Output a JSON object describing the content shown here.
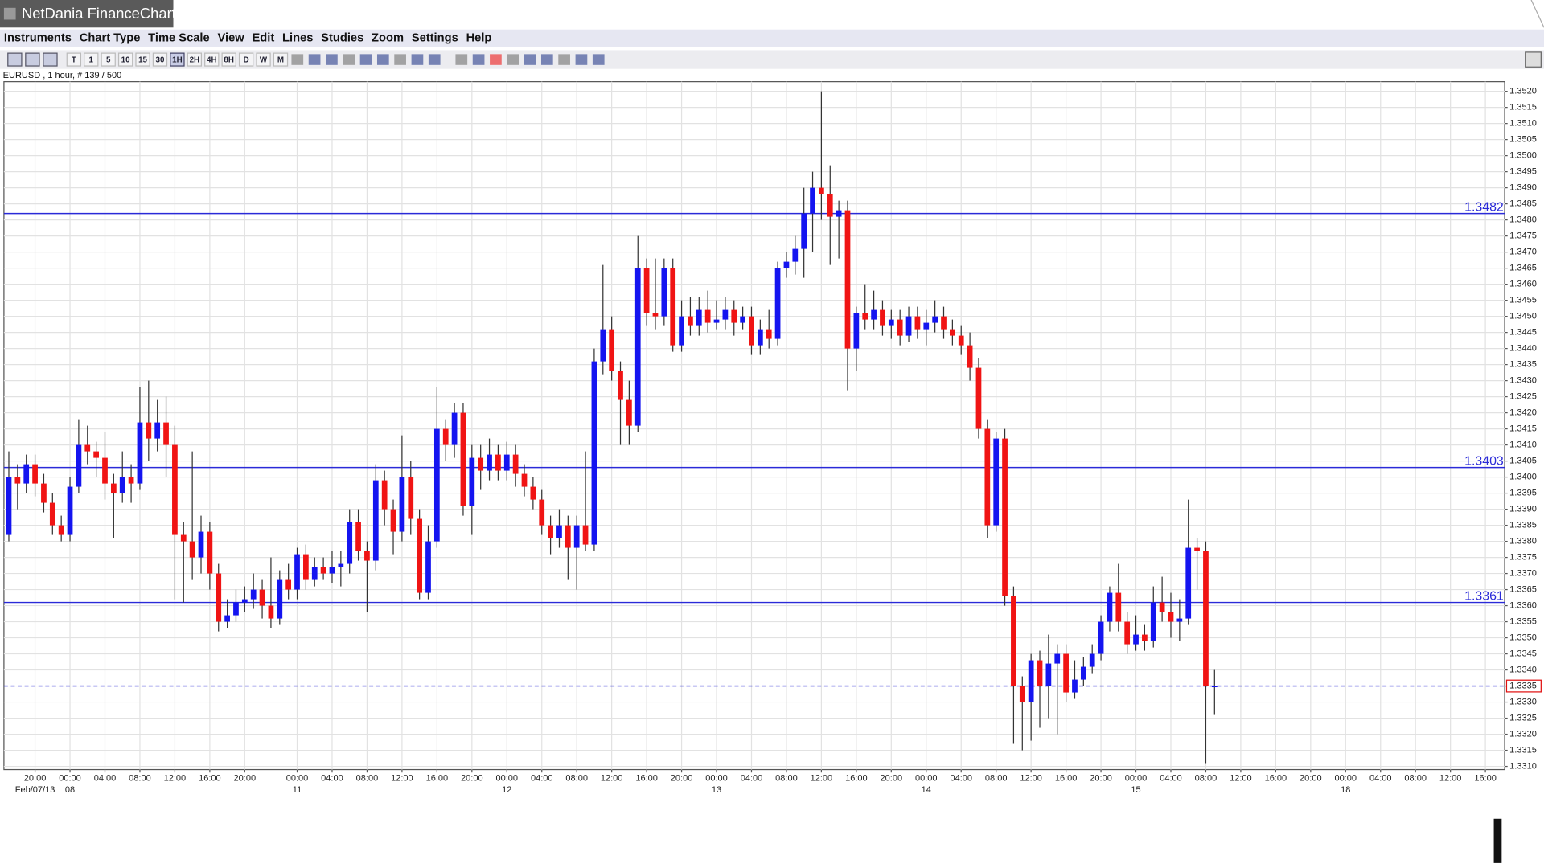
{
  "window": {
    "title": "NetDania FinanceChart"
  },
  "menu": [
    "Instruments",
    "Chart Type",
    "Time Scale",
    "View",
    "Edit",
    "Lines",
    "Studies",
    "Zoom",
    "Settings",
    "Help"
  ],
  "toolbar": {
    "timeframes": [
      "T",
      "1",
      "5",
      "10",
      "15",
      "30",
      "1H",
      "2H",
      "4H",
      "8H",
      "D",
      "W",
      "M"
    ]
  },
  "chart_data": {
    "type": "candlestick",
    "instrument_label": "EURUSD , 1 hour, # 139 / 500",
    "up_color": "#1414f0",
    "down_color": "#f01414",
    "line_color": "#2a2ad8",
    "last_color": "#e01010",
    "grid": true,
    "xlim": [
      -0.56,
      171.2
    ],
    "ylim": [
      1.3309,
      1.3523
    ],
    "yticks": [
      {
        "value": 1.331,
        "label": "1.3310"
      },
      1.3315,
      {
        "value": 1.332,
        "label": "1.3320"
      },
      1.3325,
      {
        "value": 1.333,
        "label": "1.3330"
      },
      1.3335,
      {
        "value": 1.334,
        "label": "1.3340"
      },
      1.3345,
      {
        "value": 1.335,
        "label": "1.3350"
      },
      1.3355,
      {
        "value": 1.336,
        "label": "1.3360"
      },
      1.3365,
      {
        "value": 1.337,
        "label": "1.3370"
      },
      1.3375,
      {
        "value": 1.338,
        "label": "1.3380"
      },
      1.3385,
      {
        "value": 1.339,
        "label": "1.3390"
      },
      1.3395,
      {
        "value": 1.34,
        "label": "1.3400"
      },
      1.3405,
      {
        "value": 1.341,
        "label": "1.3410"
      },
      1.3415,
      {
        "value": 1.342,
        "label": "1.3420"
      },
      1.3425,
      {
        "value": 1.343,
        "label": "1.3430"
      },
      1.3435,
      {
        "value": 1.344,
        "label": "1.3440"
      },
      1.3445,
      {
        "value": 1.345,
        "label": "1.3450"
      },
      1.3455,
      {
        "value": 1.346,
        "label": "1.3460"
      },
      1.3465,
      {
        "value": 1.347,
        "label": "1.3470"
      },
      1.3475,
      {
        "value": 1.348,
        "label": "1.3480"
      },
      1.3485,
      {
        "value": 1.349,
        "label": "1.3490"
      },
      1.3495,
      {
        "value": 1.35,
        "label": "1.3500"
      },
      1.3505,
      {
        "value": 1.351,
        "label": "1.3510"
      },
      1.3515,
      {
        "value": 1.352,
        "label": "1.3520"
      }
    ],
    "xticks": [
      {
        "value": 3,
        "label": "20:00"
      },
      {
        "value": 7,
        "label": "00:00"
      },
      {
        "value": 11,
        "label": "04:00"
      },
      {
        "value": 15,
        "label": "08:00"
      },
      {
        "value": 19,
        "label": "12:00"
      },
      {
        "value": 23,
        "label": "16:00"
      },
      {
        "value": 27,
        "label": "20:00"
      },
      {
        "value": 33,
        "label": "00:00"
      },
      {
        "value": 37,
        "label": "04:00"
      },
      {
        "value": 41,
        "label": "08:00"
      },
      {
        "value": 45,
        "label": "12:00"
      },
      {
        "value": 49,
        "label": "16:00"
      },
      {
        "value": 53,
        "label": "20:00"
      },
      {
        "value": 57,
        "label": "00:00"
      },
      {
        "value": 61,
        "label": "04:00"
      },
      {
        "value": 65,
        "label": "08:00"
      },
      {
        "value": 69,
        "label": "12:00"
      },
      {
        "value": 73,
        "label": "16:00"
      },
      {
        "value": 77,
        "label": "20:00"
      },
      {
        "value": 81,
        "label": "00:00"
      },
      {
        "value": 85,
        "label": "04:00"
      },
      {
        "value": 89,
        "label": "08:00"
      },
      {
        "value": 93,
        "label": "12:00"
      },
      {
        "value": 97,
        "label": "16:00"
      },
      {
        "value": 101,
        "label": "20:00"
      },
      {
        "value": 105,
        "label": "00:00"
      },
      {
        "value": 109,
        "label": "04:00"
      },
      {
        "value": 113,
        "label": "08:00"
      },
      {
        "value": 117,
        "label": "12:00"
      },
      {
        "value": 121,
        "label": "16:00"
      },
      {
        "value": 125,
        "label": "20:00"
      },
      {
        "value": 129,
        "label": "00:00"
      },
      {
        "value": 133,
        "label": "04:00"
      },
      {
        "value": 137,
        "label": "08:00"
      },
      {
        "value": 141,
        "label": "12:00"
      },
      {
        "value": 145,
        "label": "16:00"
      },
      {
        "value": 149,
        "label": "20:00"
      },
      {
        "value": 153,
        "label": "00:00"
      },
      {
        "value": 157,
        "label": "04:00"
      },
      {
        "value": 161,
        "label": "08:00"
      },
      {
        "value": 165,
        "label": "12:00"
      },
      {
        "value": 169,
        "label": "16:00"
      }
    ],
    "date_ticks": [
      {
        "value": 3,
        "label": "Feb/07/13"
      },
      {
        "value": 7,
        "label": "08"
      },
      {
        "value": 33,
        "label": "11"
      },
      {
        "value": 57,
        "label": "12"
      },
      {
        "value": 81,
        "label": "13"
      },
      {
        "value": 105,
        "label": "14"
      },
      {
        "value": 129,
        "label": "15"
      },
      {
        "value": 153,
        "label": "18"
      }
    ],
    "hlines": [
      1.3482,
      1.3403,
      1.3361
    ],
    "last_price": 1.3335,
    "candles": [
      [
        1.3382,
        1.3408,
        1.338,
        1.34
      ],
      [
        1.34,
        1.3404,
        1.339,
        1.3398
      ],
      [
        1.3398,
        1.3407,
        1.3395,
        1.3404
      ],
      [
        1.3404,
        1.3407,
        1.3394,
        1.3398
      ],
      [
        1.3398,
        1.3401,
        1.3389,
        1.3392
      ],
      [
        1.3392,
        1.3395,
        1.3382,
        1.3385
      ],
      [
        1.3385,
        1.3388,
        1.338,
        1.3382
      ],
      [
        1.3382,
        1.34,
        1.338,
        1.3397
      ],
      [
        1.3397,
        1.3418,
        1.3395,
        1.341
      ],
      [
        1.341,
        1.3416,
        1.3404,
        1.3408
      ],
      [
        1.3408,
        1.3411,
        1.34,
        1.3406
      ],
      [
        1.3406,
        1.3414,
        1.3393,
        1.3398
      ],
      [
        1.3398,
        1.3401,
        1.3381,
        1.3395
      ],
      [
        1.3395,
        1.3408,
        1.3392,
        1.34
      ],
      [
        1.34,
        1.3404,
        1.3392,
        1.3398
      ],
      [
        1.3398,
        1.3428,
        1.3396,
        1.3417
      ],
      [
        1.3417,
        1.343,
        1.3405,
        1.3412
      ],
      [
        1.3412,
        1.3424,
        1.3408,
        1.3417
      ],
      [
        1.3417,
        1.3425,
        1.34,
        1.341
      ],
      [
        1.341,
        1.3416,
        1.3362,
        1.3382
      ],
      [
        1.3382,
        1.3386,
        1.3361,
        1.338
      ],
      [
        1.338,
        1.3408,
        1.3368,
        1.3375
      ],
      [
        1.3375,
        1.3388,
        1.337,
        1.3383
      ],
      [
        1.3383,
        1.3386,
        1.3365,
        1.337
      ],
      [
        1.337,
        1.3373,
        1.3352,
        1.3355
      ],
      [
        1.3355,
        1.3362,
        1.3353,
        1.3357
      ],
      [
        1.3357,
        1.3365,
        1.3355,
        1.3361
      ],
      [
        1.3361,
        1.3366,
        1.3358,
        1.3362
      ],
      [
        1.3362,
        1.337,
        1.3359,
        1.3365
      ],
      [
        1.3365,
        1.3368,
        1.3356,
        1.336
      ],
      [
        1.336,
        1.3375,
        1.3353,
        1.3356
      ],
      [
        1.3356,
        1.3371,
        1.3354,
        1.3368
      ],
      [
        1.3368,
        1.3373,
        1.3362,
        1.3365
      ],
      [
        1.3365,
        1.3378,
        1.3362,
        1.3376
      ],
      [
        1.3376,
        1.3379,
        1.3365,
        1.3368
      ],
      [
        1.3368,
        1.3375,
        1.3366,
        1.3372
      ],
      [
        1.3372,
        1.3375,
        1.3368,
        1.337
      ],
      [
        1.337,
        1.3377,
        1.3367,
        1.3372
      ],
      [
        1.3372,
        1.3377,
        1.3366,
        1.3373
      ],
      [
        1.3373,
        1.339,
        1.337,
        1.3386
      ],
      [
        1.3386,
        1.339,
        1.3374,
        1.3377
      ],
      [
        1.3377,
        1.338,
        1.3358,
        1.3374
      ],
      [
        1.3374,
        1.3404,
        1.3371,
        1.3399
      ],
      [
        1.3399,
        1.3402,
        1.3385,
        1.339
      ],
      [
        1.339,
        1.3393,
        1.3376,
        1.3383
      ],
      [
        1.3383,
        1.3413,
        1.338,
        1.34
      ],
      [
        1.34,
        1.3405,
        1.3382,
        1.3387
      ],
      [
        1.3387,
        1.339,
        1.3362,
        1.3364
      ],
      [
        1.3364,
        1.3385,
        1.3362,
        1.338
      ],
      [
        1.338,
        1.3428,
        1.3378,
        1.3415
      ],
      [
        1.3415,
        1.3418,
        1.3405,
        1.341
      ],
      [
        1.341,
        1.3423,
        1.3406,
        1.342
      ],
      [
        1.342,
        1.3423,
        1.3388,
        1.3391
      ],
      [
        1.3391,
        1.341,
        1.3382,
        1.3406
      ],
      [
        1.3406,
        1.341,
        1.3396,
        1.3402
      ],
      [
        1.3402,
        1.3412,
        1.3399,
        1.3407
      ],
      [
        1.3407,
        1.341,
        1.3399,
        1.3402
      ],
      [
        1.3402,
        1.3411,
        1.3399,
        1.3407
      ],
      [
        1.3407,
        1.341,
        1.3397,
        1.3401
      ],
      [
        1.3401,
        1.3404,
        1.3394,
        1.3397
      ],
      [
        1.3397,
        1.34,
        1.339,
        1.3393
      ],
      [
        1.3393,
        1.3396,
        1.3382,
        1.3385
      ],
      [
        1.3385,
        1.3388,
        1.3376,
        1.3381
      ],
      [
        1.3381,
        1.339,
        1.3378,
        1.3385
      ],
      [
        1.3385,
        1.3388,
        1.3368,
        1.3378
      ],
      [
        1.3378,
        1.3388,
        1.3365,
        1.3385
      ],
      [
        1.3385,
        1.3408,
        1.3377,
        1.3379
      ],
      [
        1.3379,
        1.344,
        1.3377,
        1.3436
      ],
      [
        1.3436,
        1.3466,
        1.3432,
        1.3446
      ],
      [
        1.3446,
        1.345,
        1.343,
        1.3433
      ],
      [
        1.3433,
        1.3436,
        1.341,
        1.3424
      ],
      [
        1.3424,
        1.343,
        1.341,
        1.3416
      ],
      [
        1.3416,
        1.3475,
        1.3414,
        1.3465
      ],
      [
        1.3465,
        1.3468,
        1.3447,
        1.3451
      ],
      [
        1.3451,
        1.3468,
        1.3446,
        1.345
      ],
      [
        1.345,
        1.3468,
        1.3447,
        1.3465
      ],
      [
        1.3465,
        1.3468,
        1.3439,
        1.3441
      ],
      [
        1.3441,
        1.3455,
        1.3439,
        1.345
      ],
      [
        1.345,
        1.3456,
        1.3444,
        1.3447
      ],
      [
        1.3447,
        1.3456,
        1.3444,
        1.3452
      ],
      [
        1.3452,
        1.3458,
        1.3445,
        1.3448
      ],
      [
        1.3448,
        1.3455,
        1.3446,
        1.3449
      ],
      [
        1.3449,
        1.3456,
        1.3446,
        1.3452
      ],
      [
        1.3452,
        1.3455,
        1.3444,
        1.3448
      ],
      [
        1.3448,
        1.3453,
        1.3446,
        1.345
      ],
      [
        1.345,
        1.3453,
        1.3438,
        1.3441
      ],
      [
        1.3441,
        1.3449,
        1.3438,
        1.3446
      ],
      [
        1.3446,
        1.3452,
        1.344,
        1.3443
      ],
      [
        1.3443,
        1.3467,
        1.3441,
        1.3465
      ],
      [
        1.3465,
        1.347,
        1.3462,
        1.3467
      ],
      [
        1.3467,
        1.3475,
        1.3463,
        1.3471
      ],
      [
        1.3471,
        1.349,
        1.3462,
        1.3482
      ],
      [
        1.3482,
        1.3495,
        1.347,
        1.349
      ],
      [
        1.349,
        1.352,
        1.348,
        1.3488
      ],
      [
        1.3488,
        1.3497,
        1.3466,
        1.3481
      ],
      [
        1.3481,
        1.3486,
        1.3468,
        1.3483
      ],
      [
        1.3483,
        1.3486,
        1.3427,
        1.344
      ],
      [
        1.344,
        1.3453,
        1.3433,
        1.3451
      ],
      [
        1.3451,
        1.346,
        1.3446,
        1.3449
      ],
      [
        1.3449,
        1.3458,
        1.3446,
        1.3452
      ],
      [
        1.3452,
        1.3455,
        1.3444,
        1.3447
      ],
      [
        1.3447,
        1.3452,
        1.3443,
        1.3449
      ],
      [
        1.3449,
        1.3452,
        1.3441,
        1.3444
      ],
      [
        1.3444,
        1.3453,
        1.3442,
        1.345
      ],
      [
        1.345,
        1.3453,
        1.3443,
        1.3446
      ],
      [
        1.3446,
        1.3452,
        1.3441,
        1.3448
      ],
      [
        1.3448,
        1.3455,
        1.3445,
        1.345
      ],
      [
        1.345,
        1.3453,
        1.3443,
        1.3446
      ],
      [
        1.3446,
        1.3449,
        1.3441,
        1.3444
      ],
      [
        1.3444,
        1.3447,
        1.3438,
        1.3441
      ],
      [
        1.3441,
        1.3445,
        1.343,
        1.3434
      ],
      [
        1.3434,
        1.3437,
        1.3412,
        1.3415
      ],
      [
        1.3415,
        1.3418,
        1.3381,
        1.3385
      ],
      [
        1.3385,
        1.3414,
        1.3383,
        1.3412
      ],
      [
        1.3412,
        1.3415,
        1.336,
        1.3363
      ],
      [
        1.3363,
        1.3366,
        1.3317,
        1.3335
      ],
      [
        1.3335,
        1.3338,
        1.3315,
        1.333
      ],
      [
        1.333,
        1.3345,
        1.3318,
        1.3343
      ],
      [
        1.3343,
        1.3346,
        1.3322,
        1.3335
      ],
      [
        1.3335,
        1.3351,
        1.3325,
        1.3342
      ],
      [
        1.3342,
        1.3348,
        1.332,
        1.3345
      ],
      [
        1.3345,
        1.3348,
        1.333,
        1.3333
      ],
      [
        1.3333,
        1.3343,
        1.3331,
        1.3337
      ],
      [
        1.3337,
        1.3344,
        1.3335,
        1.3341
      ],
      [
        1.3341,
        1.3348,
        1.3339,
        1.3345
      ],
      [
        1.3345,
        1.3357,
        1.3343,
        1.3355
      ],
      [
        1.3355,
        1.3366,
        1.3352,
        1.3364
      ],
      [
        1.3364,
        1.3373,
        1.3352,
        1.3355
      ],
      [
        1.3355,
        1.3358,
        1.3345,
        1.3348
      ],
      [
        1.3348,
        1.3357,
        1.3346,
        1.3351
      ],
      [
        1.3351,
        1.3354,
        1.3346,
        1.3349
      ],
      [
        1.3349,
        1.3366,
        1.3347,
        1.3361
      ],
      [
        1.3361,
        1.3369,
        1.3355,
        1.3358
      ],
      [
        1.3358,
        1.3364,
        1.335,
        1.3355
      ],
      [
        1.3355,
        1.3362,
        1.3349,
        1.3356
      ],
      [
        1.3356,
        1.3393,
        1.3354,
        1.3378
      ],
      [
        1.3378,
        1.3381,
        1.3365,
        1.3377
      ],
      [
        1.3377,
        1.338,
        1.3311,
        1.3335
      ],
      [
        1.3335,
        1.334,
        1.3326,
        1.3335
      ]
    ]
  }
}
